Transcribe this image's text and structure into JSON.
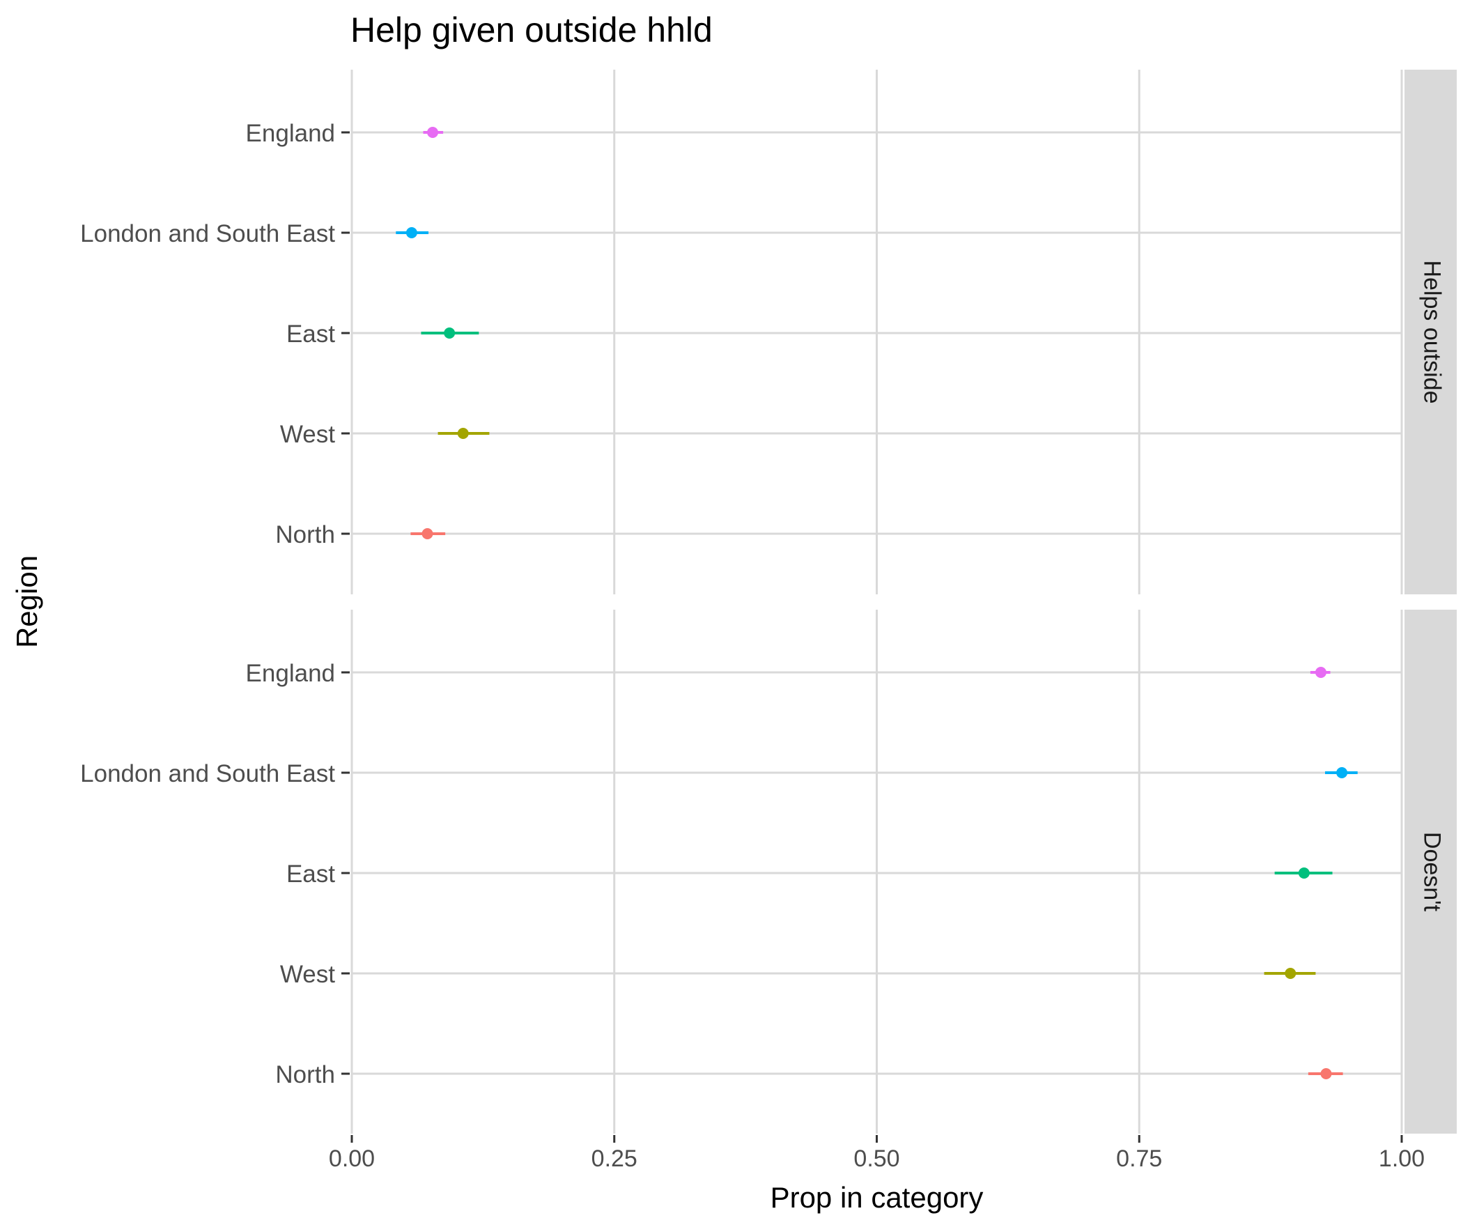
{
  "chart_data": {
    "type": "scatter",
    "title": "Help given outside hhld",
    "xlabel": "Prop in category",
    "ylabel": "Region",
    "xlim": [
      0,
      1
    ],
    "x_ticks": [
      "0.00",
      "0.25",
      "0.50",
      "0.75",
      "1.00"
    ],
    "x_tick_values": [
      0,
      0.25,
      0.5,
      0.75,
      1.0
    ],
    "categories": [
      "England",
      "London and South East",
      "East",
      "West",
      "North"
    ],
    "grid": true,
    "legend": "none",
    "colors": {
      "England": "#E76BF3",
      "London and South East": "#00B0F6",
      "East": "#00BF7D",
      "West": "#A3A500",
      "North": "#F8766D"
    },
    "panels": [
      {
        "label": "Helps outside",
        "points": [
          {
            "region": "England",
            "x": 0.077,
            "lo": 0.068,
            "hi": 0.087
          },
          {
            "region": "London and South East",
            "x": 0.057,
            "lo": 0.042,
            "hi": 0.073
          },
          {
            "region": "East",
            "x": 0.093,
            "lo": 0.066,
            "hi": 0.121
          },
          {
            "region": "West",
            "x": 0.106,
            "lo": 0.082,
            "hi": 0.131
          },
          {
            "region": "North",
            "x": 0.072,
            "lo": 0.056,
            "hi": 0.089
          }
        ]
      },
      {
        "label": "Doesn't",
        "points": [
          {
            "region": "England",
            "x": 0.923,
            "lo": 0.913,
            "hi": 0.932
          },
          {
            "region": "London and South East",
            "x": 0.943,
            "lo": 0.927,
            "hi": 0.958
          },
          {
            "region": "East",
            "x": 0.907,
            "lo": 0.879,
            "hi": 0.934
          },
          {
            "region": "West",
            "x": 0.894,
            "lo": 0.869,
            "hi": 0.918
          },
          {
            "region": "North",
            "x": 0.928,
            "lo": 0.911,
            "hi": 0.944
          }
        ]
      }
    ]
  }
}
